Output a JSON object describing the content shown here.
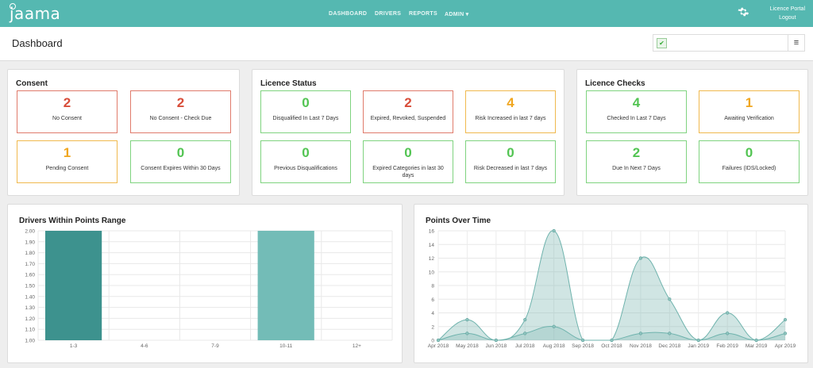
{
  "app": {
    "logo": "jaama"
  },
  "nav": {
    "items": [
      "DASHBOARD",
      "DRIVERS",
      "REPORTS",
      "ADMIN ▾"
    ],
    "licence_portal": "Licence Portal",
    "logout": "Logout"
  },
  "page": {
    "title": "Dashboard",
    "search_value": ""
  },
  "consent": {
    "title": "Consent",
    "cards": [
      {
        "value": "2",
        "label": "No Consent",
        "status": "red"
      },
      {
        "value": "2",
        "label": "No Consent - Check Due",
        "status": "red"
      },
      {
        "value": "1",
        "label": "Pending Consent",
        "status": "orange"
      },
      {
        "value": "0",
        "label": "Consent Expires Within 30 Days",
        "status": "green"
      }
    ]
  },
  "licence_status": {
    "title": "Licence Status",
    "cards": [
      {
        "value": "0",
        "label": "Disqualified In Last 7 Days",
        "status": "green"
      },
      {
        "value": "2",
        "label": "Expired, Revoked, Suspended",
        "status": "red"
      },
      {
        "value": "4",
        "label": "Risk Increased in last 7 days",
        "status": "orange"
      },
      {
        "value": "0",
        "label": "Previous Disqualifications",
        "status": "green"
      },
      {
        "value": "0",
        "label": "Expired Categories in last 30 days",
        "status": "green"
      },
      {
        "value": "0",
        "label": "Risk Decreased in last 7 days",
        "status": "green"
      }
    ]
  },
  "licence_checks": {
    "title": "Licence Checks",
    "cards": [
      {
        "value": "4",
        "label": "Checked In Last 7 Days",
        "status": "green"
      },
      {
        "value": "1",
        "label": "Awaiting Verification",
        "status": "orange"
      },
      {
        "value": "2",
        "label": "Due In Next 7 Days",
        "status": "green"
      },
      {
        "value": "0",
        "label": "Failures (IDS/Locked)",
        "status": "green"
      }
    ]
  },
  "colors": {
    "accent": "#55b8b1",
    "red": "#d84d39",
    "green": "#52c452",
    "orange": "#f0a61f",
    "bar_dark": "#3d928e",
    "bar_light": "#73bcb7"
  },
  "chart_data": [
    {
      "type": "bar",
      "title": "Drivers Within Points Range",
      "categories": [
        "1-3",
        "4-6",
        "7-9",
        "10-11",
        "12+"
      ],
      "values": [
        2.0,
        1.0,
        1.0,
        2.0,
        1.0
      ],
      "ylim": [
        1.0,
        2.0
      ],
      "yticks": [
        "1.00",
        "1.10",
        "1.20",
        "1.30",
        "1.40",
        "1.50",
        "1.60",
        "1.70",
        "1.80",
        "1.90",
        "2.00"
      ],
      "xlabel": "",
      "ylabel": "",
      "grid": true
    },
    {
      "type": "area",
      "title": "Points Over Time",
      "x": [
        "Apr 2018",
        "May 2018",
        "Jun 2018",
        "Jul 2018",
        "Aug 2018",
        "Sep 2018",
        "Oct 2018",
        "Nov 2018",
        "Dec 2018",
        "Jan 2019",
        "Feb 2019",
        "Mar 2019",
        "Apr 2019"
      ],
      "series": [
        {
          "values": [
            0,
            3,
            0,
            3,
            16,
            0,
            0,
            12,
            6,
            0,
            4,
            0,
            3
          ]
        },
        {
          "values": [
            0,
            1,
            0,
            1,
            2,
            0,
            0,
            1,
            1,
            0,
            1,
            0,
            1
          ]
        }
      ],
      "ylim": [
        0,
        16
      ],
      "yticks": [
        "0",
        "2",
        "4",
        "6",
        "8",
        "10",
        "12",
        "14",
        "16"
      ],
      "xlabel": "",
      "ylabel": "",
      "grid": true
    }
  ]
}
